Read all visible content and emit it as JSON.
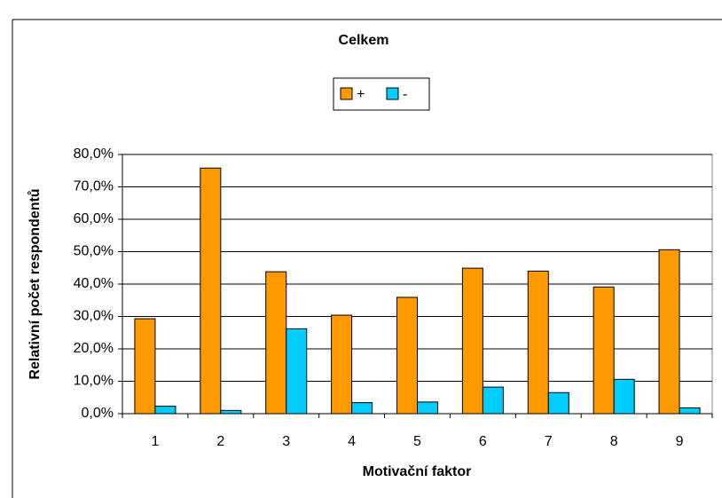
{
  "chart_data": {
    "type": "bar",
    "title": "Celkem",
    "x_label": "Motivační faktor",
    "y_label": "Relativní počet respondentů",
    "categories": [
      "1",
      "2",
      "3",
      "4",
      "5",
      "6",
      "7",
      "8",
      "9"
    ],
    "series": [
      {
        "name": "+",
        "color": "#ff9900",
        "values": [
          29.3,
          75.8,
          43.8,
          30.4,
          35.9,
          44.9,
          44.0,
          39.1,
          50.6
        ]
      },
      {
        "name": "-",
        "color": "#00ccff",
        "values": [
          2.3,
          1.0,
          26.2,
          3.4,
          3.6,
          8.2,
          6.5,
          10.6,
          1.8
        ]
      }
    ],
    "ylim": [
      0,
      80
    ],
    "yticks": [
      {
        "value": 0,
        "label": "0,0%"
      },
      {
        "value": 10,
        "label": "10,0%"
      },
      {
        "value": 20,
        "label": "20,0%"
      },
      {
        "value": 30,
        "label": "30,0%"
      },
      {
        "value": 40,
        "label": "40,0%"
      },
      {
        "value": 50,
        "label": "50,0%"
      },
      {
        "value": 60,
        "label": "60,0%"
      },
      {
        "value": 70,
        "label": "70,0%"
      },
      {
        "value": 80,
        "label": "80,0%"
      }
    ],
    "grid": true,
    "legend": "top"
  }
}
